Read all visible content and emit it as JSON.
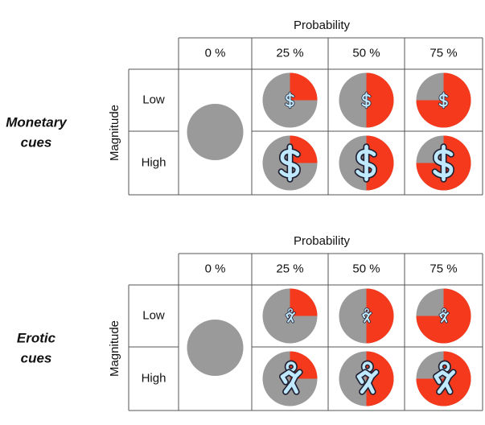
{
  "panels": [
    {
      "label": [
        "Monetary",
        "cues"
      ],
      "column_title": "Probability",
      "row_title": "Magnitude",
      "columns": [
        {
          "label": "0 %",
          "value": 0
        },
        {
          "label": "25 %",
          "value": 25
        },
        {
          "label": "50 %",
          "value": 50
        },
        {
          "label": "75 %",
          "value": 75
        }
      ],
      "rows": [
        "Low",
        "High"
      ],
      "icon": "dollar"
    },
    {
      "label": [
        "Erotic",
        "cues"
      ],
      "column_title": "Probability",
      "row_title": "Magnitude",
      "columns": [
        {
          "label": "0 %",
          "value": 0
        },
        {
          "label": "25 %",
          "value": 25
        },
        {
          "label": "50 %",
          "value": 50
        },
        {
          "label": "75 %",
          "value": 75
        }
      ],
      "rows": [
        "Low",
        "High"
      ],
      "icon": "figure"
    }
  ],
  "colors": {
    "base": "#9a9a9a",
    "wedge": "#f5391c"
  }
}
